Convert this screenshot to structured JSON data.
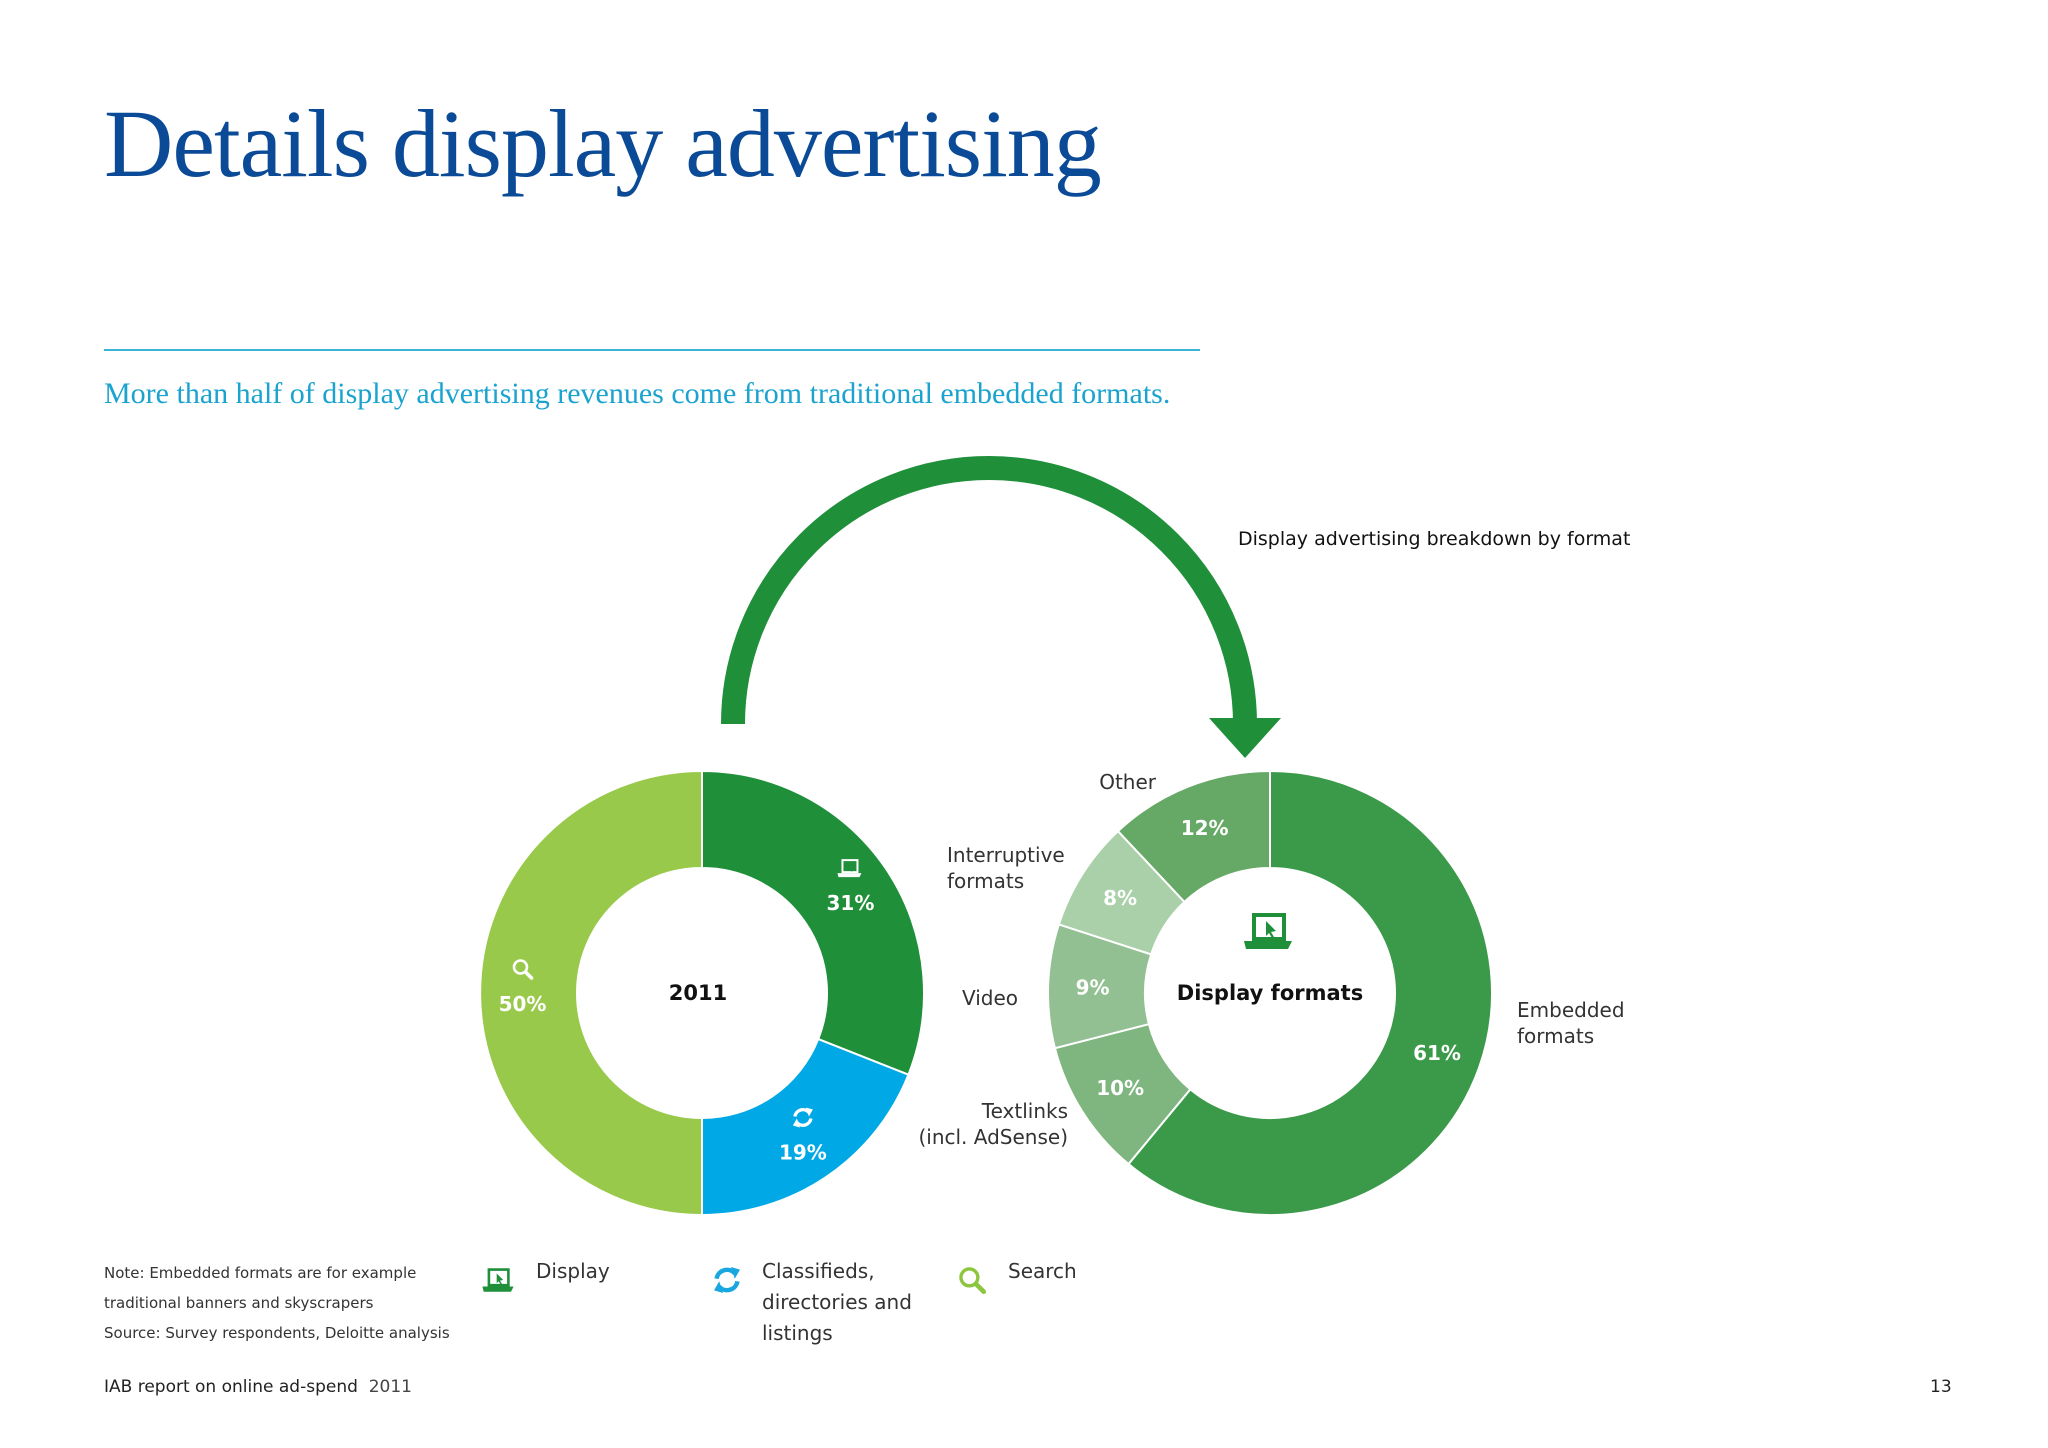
{
  "page": {
    "title": "Details display advertising",
    "subtitle": "More than half of display advertising revenues come from traditional embedded formats.",
    "breakdown_label": "Display advertising breakdown by format",
    "note_lines": [
      "Note: Embedded formats are for example",
      "traditional banners and skyscrapers",
      "Source: Survey respondents, Deloitte analysis"
    ],
    "legend": [
      {
        "icon": "display-laptop-icon",
        "label_lines": [
          "Display"
        ],
        "color": "#1f8f3a"
      },
      {
        "icon": "classifieds-refresh-icon",
        "label_lines": [
          "Classifieds,",
          "directories and",
          "listings"
        ],
        "color": "#1aa7e0"
      },
      {
        "icon": "search-magnifier-icon",
        "label_lines": [
          "Search"
        ],
        "color": "#8cc63f"
      }
    ],
    "footer": {
      "report": "IAB report on online ad-spend",
      "year": "2011",
      "page_number": "13"
    }
  },
  "chart_data": [
    {
      "type": "pie",
      "center_label": "2011",
      "slices": [
        {
          "name": "Display",
          "value": 31,
          "label": "31%",
          "icon": "display-laptop-icon",
          "color": "#1f8f3a"
        },
        {
          "name": "Classifieds, directories and listings",
          "value": 19,
          "label": "19%",
          "icon": "classifieds-refresh-icon",
          "color": "#00a9e6"
        },
        {
          "name": "Search",
          "value": 50,
          "label": "50%",
          "icon": "search-magnifier-icon",
          "color": "#99c94a"
        }
      ]
    },
    {
      "type": "pie",
      "center_label": "Display formats",
      "slices": [
        {
          "name": "Embedded formats",
          "value": 61,
          "label": "61%",
          "category_lines": [
            "Embedded",
            "formats"
          ],
          "color": "#3a9a4a"
        },
        {
          "name": "Textlinks (incl. AdSense)",
          "value": 10,
          "label": "10%",
          "category_lines": [
            "Textlinks",
            "(incl. AdSense)"
          ],
          "color": "#7fb57e"
        },
        {
          "name": "Video",
          "value": 9,
          "label": "9%",
          "category_lines": [
            "Video"
          ],
          "color": "#92c092"
        },
        {
          "name": "Interruptive formats",
          "value": 8,
          "label": "8%",
          "category_lines": [
            "Interruptive",
            "formats"
          ],
          "color": "#a9d0a8"
        },
        {
          "name": "Other",
          "value": 12,
          "label": "12%",
          "category_lines": [
            "Other"
          ],
          "color": "#66a866"
        }
      ]
    }
  ]
}
